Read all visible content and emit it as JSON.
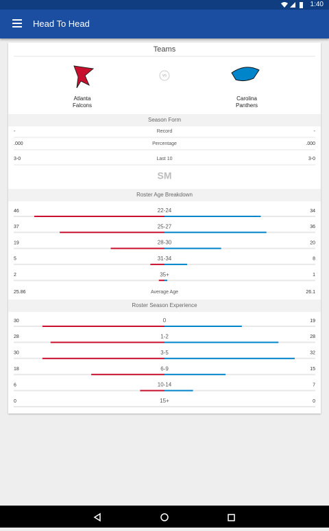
{
  "status_bar": {
    "time": "1:40"
  },
  "app_bar": {
    "title": "Head To Head"
  },
  "card": {
    "title": "Teams",
    "vs": "vs",
    "teams": [
      {
        "line1": "Atlanta",
        "line2": "Falcons",
        "color": "#c8102e"
      },
      {
        "line1": "Carolina",
        "line2": "Panthers",
        "color": "#0085ca"
      }
    ],
    "season_form": {
      "header": "Season Form",
      "rows": [
        {
          "label": "Record",
          "left": "-",
          "right": "-"
        },
        {
          "label": "Percentage",
          "left": ".000",
          "right": ".000"
        },
        {
          "label": "Last 10",
          "left": "3-0",
          "right": "3-0"
        }
      ],
      "logo": "SM"
    },
    "age": {
      "header": "Roster Age Breakdown",
      "rows": [
        {
          "label": "22-24",
          "left": 46,
          "right": 34
        },
        {
          "label": "25-27",
          "left": 37,
          "right": 36
        },
        {
          "label": "28-30",
          "left": 19,
          "right": 20
        },
        {
          "label": "31-34",
          "left": 5,
          "right": 8
        },
        {
          "label": "35+",
          "left": 2,
          "right": 1
        }
      ],
      "average": {
        "label": "Average Age",
        "left": "25.86",
        "right": "26.1"
      }
    },
    "experience": {
      "header": "Roster Season Experience",
      "rows": [
        {
          "label": "0",
          "left": 30,
          "right": 19
        },
        {
          "label": "1-2",
          "left": 28,
          "right": 28
        },
        {
          "label": "3-5",
          "left": 30,
          "right": 32
        },
        {
          "label": "6-9",
          "left": 18,
          "right": 15
        },
        {
          "label": "10-14",
          "left": 6,
          "right": 7
        },
        {
          "label": "15+",
          "left": 0,
          "right": 0
        }
      ]
    }
  }
}
